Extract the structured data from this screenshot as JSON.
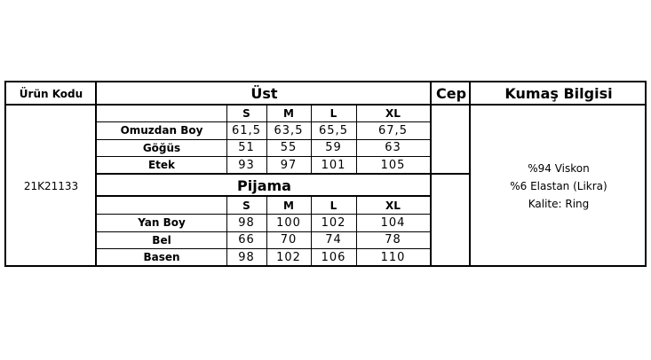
{
  "header": {
    "product_code_label": "Ürün Kodu",
    "top_label": "Üst",
    "pocket_label": "Cep",
    "fabric_label": "Kumaş Bilgisi"
  },
  "product_code": "21K21133",
  "top": {
    "sizes": [
      "S",
      "M",
      "L",
      "XL"
    ],
    "rows": [
      {
        "label": "Omuzdan Boy",
        "values": [
          "61,5",
          "63,5",
          "65,5",
          "67,5"
        ]
      },
      {
        "label": "Göğüs",
        "values": [
          "51",
          "55",
          "59",
          "63"
        ]
      },
      {
        "label": "Etek",
        "values": [
          "93",
          "97",
          "101",
          "105"
        ]
      }
    ]
  },
  "pajama": {
    "title": "Pijama",
    "sizes": [
      "S",
      "M",
      "L",
      "XL"
    ],
    "rows": [
      {
        "label": "Yan Boy",
        "values": [
          "98",
          "100",
          "102",
          "104"
        ]
      },
      {
        "label": "Bel",
        "values": [
          "66",
          "70",
          "74",
          "78"
        ]
      },
      {
        "label": "Basen",
        "values": [
          "98",
          "102",
          "106",
          "110"
        ]
      }
    ]
  },
  "fabric": {
    "lines": [
      "%94 Viskon",
      "%6 Elastan (Likra)",
      "Kalite: Ring"
    ]
  }
}
